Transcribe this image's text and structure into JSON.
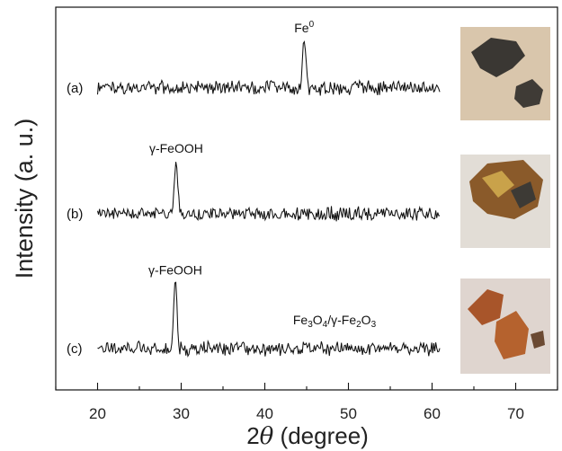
{
  "chart_data": {
    "type": "line",
    "xlabel": {
      "prefix": "2",
      "symbol": "θ",
      "suffix": " (degree)"
    },
    "ylabel": "Intensity (a. u.)",
    "xlim": [
      15,
      75
    ],
    "xticks": [
      20,
      30,
      40,
      50,
      60,
      70
    ],
    "x_range_measured": [
      20,
      61
    ],
    "grid": false,
    "legend": "none",
    "series": [
      {
        "label": "(a)",
        "peaks": [
          {
            "x": 44.7,
            "height": 0.9,
            "label": "Fe",
            "label_sup": "0"
          }
        ],
        "photo": "dark-gray-chunks",
        "photo_bg": "#d9c6ac"
      },
      {
        "label": "(b)",
        "peaks": [
          {
            "x": 29.4,
            "height": 1.0,
            "label": "γ-FeOOH"
          }
        ],
        "photo": "brown-yellow-flakes",
        "photo_bg": "#e2ddd6"
      },
      {
        "label": "(c)",
        "peaks": [
          {
            "x": 29.3,
            "height": 1.25,
            "label": "γ-FeOOH"
          },
          {
            "x": 47.5,
            "height": 0.0,
            "label_parts": [
              "Fe",
              "3",
              "O",
              "4",
              "/γ-Fe",
              "2",
              "O",
              "3"
            ]
          }
        ],
        "photo": "rust-orange-chunks",
        "photo_bg": "#dfd5cf"
      }
    ]
  }
}
